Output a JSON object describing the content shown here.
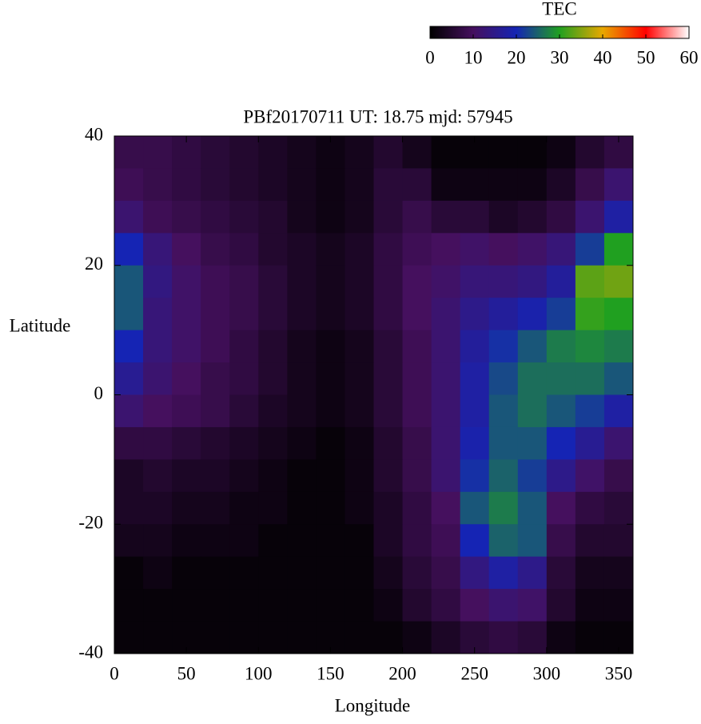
{
  "chart_data": {
    "type": "heatmap",
    "title": "PBf20170711  UT: 18.75  mjd: 57945",
    "xlabel": "Longitude",
    "ylabel": "Latitude",
    "colorbar_label": "TEC",
    "xlim": [
      0,
      360
    ],
    "xticks": [
      0,
      50,
      100,
      150,
      200,
      250,
      300,
      350
    ],
    "ylim": [
      -40,
      40
    ],
    "yticks": [
      -40,
      -20,
      0,
      20,
      40
    ],
    "zlim": [
      0,
      60
    ],
    "zticks": [
      0,
      10,
      20,
      30,
      40,
      50,
      60
    ],
    "colormap": [
      "#000000",
      "#45105e",
      "#1524b4",
      "#20a020",
      "#e8a800",
      "#ff0000",
      "#ffffff"
    ],
    "xbins": [
      0,
      20,
      40,
      60,
      80,
      100,
      120,
      140,
      160,
      180,
      200,
      220,
      240,
      260,
      280,
      300,
      320,
      340,
      360
    ],
    "ybins": [
      40,
      35,
      30,
      25,
      20,
      15,
      10,
      5,
      0,
      -5,
      -10,
      -15,
      -20,
      -25,
      -30,
      -35,
      -40
    ],
    "z": [
      [
        8,
        8,
        7,
        6,
        5,
        4,
        3,
        2,
        3,
        5,
        3,
        1,
        1,
        1,
        1,
        2,
        5,
        7
      ],
      [
        9,
        8,
        7,
        6,
        5,
        4,
        3,
        2,
        3,
        6,
        6,
        2,
        2,
        2,
        2,
        4,
        8,
        12
      ],
      [
        12,
        9,
        8,
        7,
        6,
        5,
        3,
        2,
        3,
        6,
        8,
        6,
        6,
        4,
        5,
        7,
        12,
        18
      ],
      [
        20,
        13,
        10,
        8,
        7,
        5,
        4,
        3,
        4,
        7,
        9,
        10,
        11,
        10,
        11,
        13,
        22,
        30
      ],
      [
        24,
        14,
        11,
        9,
        8,
        6,
        4,
        3,
        4,
        7,
        10,
        11,
        13,
        13,
        14,
        17,
        33,
        34
      ],
      [
        24,
        13,
        11,
        9,
        8,
        6,
        4,
        3,
        4,
        7,
        10,
        12,
        15,
        17,
        19,
        22,
        31,
        30
      ],
      [
        20,
        13,
        11,
        9,
        7,
        5,
        3,
        2,
        3,
        6,
        9,
        12,
        17,
        21,
        24,
        27,
        28,
        27
      ],
      [
        16,
        12,
        10,
        8,
        7,
        5,
        3,
        2,
        3,
        6,
        9,
        12,
        18,
        23,
        26,
        26,
        26,
        24
      ],
      [
        12,
        10,
        9,
        8,
        6,
        4,
        3,
        2,
        3,
        6,
        9,
        12,
        18,
        24,
        26,
        24,
        22,
        18
      ],
      [
        7,
        7,
        6,
        5,
        4,
        3,
        2,
        1,
        2,
        5,
        8,
        12,
        19,
        24,
        24,
        20,
        16,
        12
      ],
      [
        4,
        5,
        4,
        4,
        3,
        2,
        1,
        1,
        2,
        5,
        8,
        12,
        21,
        25,
        22,
        15,
        11,
        8
      ],
      [
        4,
        4,
        3,
        3,
        2,
        2,
        1,
        1,
        2,
        4,
        7,
        10,
        24,
        27,
        24,
        10,
        7,
        6
      ],
      [
        3,
        3,
        2,
        2,
        2,
        1,
        1,
        1,
        1,
        4,
        7,
        9,
        20,
        25,
        24,
        8,
        5,
        5
      ],
      [
        1,
        2,
        1,
        1,
        1,
        1,
        1,
        1,
        1,
        3,
        6,
        8,
        14,
        18,
        15,
        6,
        3,
        3
      ],
      [
        1,
        1,
        1,
        1,
        1,
        1,
        1,
        1,
        1,
        2,
        5,
        7,
        10,
        12,
        11,
        5,
        2,
        2
      ],
      [
        1,
        1,
        1,
        1,
        1,
        1,
        1,
        1,
        1,
        1,
        2,
        4,
        6,
        7,
        6,
        2,
        1,
        1
      ]
    ]
  }
}
